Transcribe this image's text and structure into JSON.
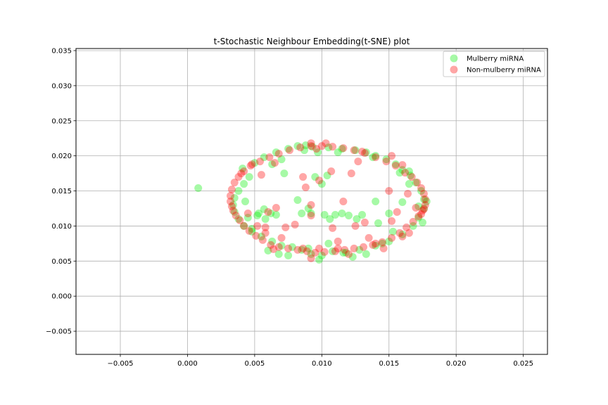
{
  "chart_data": {
    "type": "scatter",
    "title": "t-Stochastic Neighbour Embedding(t-SNE) plot",
    "xlabel": "",
    "ylabel": "",
    "xlim": [
      -0.0083,
      0.0268
    ],
    "ylim": [
      -0.0083,
      0.0353
    ],
    "xticks": [
      -0.005,
      0.0,
      0.005,
      0.01,
      0.015,
      0.02,
      0.025
    ],
    "xtick_labels": [
      "−0.005",
      "0.000",
      "0.005",
      "0.010",
      "0.015",
      "0.020",
      "0.025"
    ],
    "yticks": [
      -0.005,
      0.0,
      0.005,
      0.01,
      0.015,
      0.02,
      0.025,
      0.03,
      0.035
    ],
    "ytick_labels": [
      "−0.005",
      "0.000",
      "0.005",
      "0.010",
      "0.015",
      "0.020",
      "0.025",
      "0.030",
      "0.035"
    ],
    "grid": true,
    "legend_position": "top-right",
    "series": [
      {
        "name": "Mulberry miRNA",
        "color": "#00ee00",
        "points": [
          [
            0.0008,
            0.0154
          ],
          [
            0.0072,
            0.0175
          ],
          [
            0.0041,
            0.0182
          ],
          [
            0.005,
            0.019
          ],
          [
            0.0057,
            0.0198
          ],
          [
            0.0066,
            0.0205
          ],
          [
            0.0075,
            0.021
          ],
          [
            0.0082,
            0.0214
          ],
          [
            0.0087,
            0.0208
          ],
          [
            0.0093,
            0.0213
          ],
          [
            0.0097,
            0.0205
          ],
          [
            0.0105,
            0.0212
          ],
          [
            0.0115,
            0.021
          ],
          [
            0.0125,
            0.0208
          ],
          [
            0.0133,
            0.0205
          ],
          [
            0.014,
            0.02
          ],
          [
            0.0148,
            0.0195
          ],
          [
            0.0155,
            0.0188
          ],
          [
            0.016,
            0.018
          ],
          [
            0.0166,
            0.0172
          ],
          [
            0.017,
            0.0162
          ],
          [
            0.0174,
            0.015
          ],
          [
            0.0176,
            0.0138
          ],
          [
            0.0176,
            0.0125
          ],
          [
            0.0172,
            0.0112
          ],
          [
            0.0168,
            0.01
          ],
          [
            0.016,
            0.0088
          ],
          [
            0.015,
            0.0078
          ],
          [
            0.014,
            0.0072
          ],
          [
            0.0128,
            0.0066
          ],
          [
            0.0118,
            0.0062
          ],
          [
            0.0108,
            0.0064
          ],
          [
            0.01,
            0.0058
          ],
          [
            0.0092,
            0.006
          ],
          [
            0.0085,
            0.0066
          ],
          [
            0.0078,
            0.007
          ],
          [
            0.007,
            0.0072
          ],
          [
            0.0063,
            0.0078
          ],
          [
            0.0055,
            0.0085
          ],
          [
            0.0048,
            0.0092
          ],
          [
            0.0042,
            0.01
          ],
          [
            0.0038,
            0.011
          ],
          [
            0.0035,
            0.012
          ],
          [
            0.0034,
            0.013
          ],
          [
            0.0035,
            0.014
          ],
          [
            0.0038,
            0.015
          ],
          [
            0.0042,
            0.016
          ],
          [
            0.0046,
            0.017
          ],
          [
            0.0052,
            0.0115
          ],
          [
            0.0058,
            0.011
          ],
          [
            0.0062,
            0.0118
          ],
          [
            0.0066,
            0.0116
          ],
          [
            0.0082,
            0.0137
          ],
          [
            0.0085,
            0.0118
          ],
          [
            0.009,
            0.0125
          ],
          [
            0.0092,
            0.0118
          ],
          [
            0.0095,
            0.017
          ],
          [
            0.01,
            0.016
          ],
          [
            0.0104,
            0.0172
          ],
          [
            0.0106,
            0.011
          ],
          [
            0.011,
            0.0116
          ],
          [
            0.0115,
            0.0118
          ],
          [
            0.012,
            0.0115
          ],
          [
            0.0126,
            0.011
          ],
          [
            0.013,
            0.0116
          ],
          [
            0.014,
            0.0135
          ],
          [
            0.0142,
            0.0104
          ],
          [
            0.015,
            0.0118
          ],
          [
            0.016,
            0.0134
          ],
          [
            0.0172,
            0.0128
          ],
          [
            0.0178,
            0.0135
          ],
          [
            0.0175,
            0.0105
          ],
          [
            0.0165,
            0.016
          ],
          [
            0.0158,
            0.0176
          ],
          [
            0.0165,
            0.0178
          ],
          [
            0.006,
            0.0065
          ],
          [
            0.0075,
            0.0058
          ],
          [
            0.009,
            0.0068
          ],
          [
            0.0105,
            0.0075
          ],
          [
            0.0116,
            0.0062
          ],
          [
            0.0123,
            0.0056
          ],
          [
            0.0133,
            0.006
          ],
          [
            0.0145,
            0.0075
          ],
          [
            0.0153,
            0.0092
          ],
          [
            0.0043,
            0.0135
          ],
          [
            0.0045,
            0.0112
          ],
          [
            0.0053,
            0.0118
          ],
          [
            0.0057,
            0.0124
          ],
          [
            0.0048,
            0.0096
          ],
          [
            0.0068,
            0.006
          ],
          [
            0.0098,
            0.0052
          ],
          [
            0.0102,
            0.0116
          ],
          [
            0.0088,
            0.0215
          ],
          [
            0.0112,
            0.0205
          ],
          [
            0.0138,
            0.0198
          ],
          [
            0.0063,
            0.0188
          ],
          [
            0.007,
            0.0195
          ]
        ]
      },
      {
        "name": "Non-mulberry miRNA",
        "color": "#ff0000",
        "points": [
          [
            0.0032,
            0.0135
          ],
          [
            0.0033,
            0.0128
          ],
          [
            0.0034,
            0.0122
          ],
          [
            0.0036,
            0.0115
          ],
          [
            0.0039,
            0.0108
          ],
          [
            0.0042,
            0.01
          ],
          [
            0.0046,
            0.0093
          ],
          [
            0.0051,
            0.0086
          ],
          [
            0.0056,
            0.008
          ],
          [
            0.0062,
            0.0073
          ],
          [
            0.0068,
            0.007
          ],
          [
            0.0075,
            0.0068
          ],
          [
            0.0082,
            0.0066
          ],
          [
            0.0089,
            0.0064
          ],
          [
            0.0095,
            0.0062
          ],
          [
            0.0102,
            0.0063
          ],
          [
            0.011,
            0.0064
          ],
          [
            0.0117,
            0.0066
          ],
          [
            0.0124,
            0.0068
          ],
          [
            0.0131,
            0.007
          ],
          [
            0.0138,
            0.0073
          ],
          [
            0.0145,
            0.0077
          ],
          [
            0.0152,
            0.0083
          ],
          [
            0.0158,
            0.009
          ],
          [
            0.0163,
            0.0098
          ],
          [
            0.0168,
            0.0106
          ],
          [
            0.0172,
            0.0114
          ],
          [
            0.0175,
            0.0122
          ],
          [
            0.0177,
            0.013
          ],
          [
            0.0177,
            0.0138
          ],
          [
            0.0176,
            0.0146
          ],
          [
            0.0174,
            0.0154
          ],
          [
            0.0171,
            0.0162
          ],
          [
            0.0167,
            0.017
          ],
          [
            0.0162,
            0.0176
          ],
          [
            0.0155,
            0.0186
          ],
          [
            0.0148,
            0.0192
          ],
          [
            0.014,
            0.0198
          ],
          [
            0.0132,
            0.0204
          ],
          [
            0.0124,
            0.0208
          ],
          [
            0.0116,
            0.0211
          ],
          [
            0.0108,
            0.0213
          ],
          [
            0.01,
            0.0214
          ],
          [
            0.0092,
            0.0214
          ],
          [
            0.0084,
            0.0212
          ],
          [
            0.0076,
            0.0208
          ],
          [
            0.0068,
            0.0203
          ],
          [
            0.0061,
            0.0198
          ],
          [
            0.0054,
            0.0192
          ],
          [
            0.0047,
            0.0186
          ],
          [
            0.0042,
            0.0178
          ],
          [
            0.0038,
            0.017
          ],
          [
            0.0035,
            0.0162
          ],
          [
            0.0033,
            0.0152
          ],
          [
            0.0032,
            0.0143
          ],
          [
            0.0103,
            0.0218
          ],
          [
            0.0092,
            0.0218
          ],
          [
            0.0096,
            0.021
          ],
          [
            0.013,
            0.0206
          ],
          [
            0.0152,
            0.02
          ],
          [
            0.016,
            0.0187
          ],
          [
            0.0164,
            0.0146
          ],
          [
            0.017,
            0.0126
          ],
          [
            0.0176,
            0.0124
          ],
          [
            0.0174,
            0.0117
          ],
          [
            0.0165,
            0.009
          ],
          [
            0.016,
            0.0085
          ],
          [
            0.0146,
            0.0068
          ],
          [
            0.012,
            0.006
          ],
          [
            0.0112,
            0.0068
          ],
          [
            0.0098,
            0.0068
          ],
          [
            0.0092,
            0.0054
          ],
          [
            0.0086,
            0.0068
          ],
          [
            0.007,
            0.0083
          ],
          [
            0.0064,
            0.0067
          ],
          [
            0.0058,
            0.009
          ],
          [
            0.0052,
            0.01
          ],
          [
            0.0045,
            0.0118
          ],
          [
            0.004,
            0.0175
          ],
          [
            0.0048,
            0.0188
          ],
          [
            0.0055,
            0.0173
          ],
          [
            0.0065,
            0.019
          ],
          [
            0.0073,
            0.0098
          ],
          [
            0.008,
            0.0102
          ],
          [
            0.0086,
            0.017
          ],
          [
            0.0088,
            0.0155
          ],
          [
            0.0092,
            0.013
          ],
          [
            0.0092,
            0.0115
          ],
          [
            0.0098,
            0.0165
          ],
          [
            0.0107,
            0.0178
          ],
          [
            0.0108,
            0.0097
          ],
          [
            0.0112,
            0.0078
          ],
          [
            0.0116,
            0.0135
          ],
          [
            0.0122,
            0.0175
          ],
          [
            0.0125,
            0.01
          ],
          [
            0.0127,
            0.0192
          ],
          [
            0.0132,
            0.0105
          ],
          [
            0.0135,
            0.0083
          ],
          [
            0.014,
            0.0075
          ],
          [
            0.0152,
            0.0107
          ],
          [
            0.0156,
            0.012
          ],
          [
            0.006,
            0.012
          ],
          [
            0.0066,
            0.0126
          ],
          [
            0.0058,
            0.0098
          ],
          [
            0.015,
            0.015
          ]
        ]
      }
    ]
  }
}
